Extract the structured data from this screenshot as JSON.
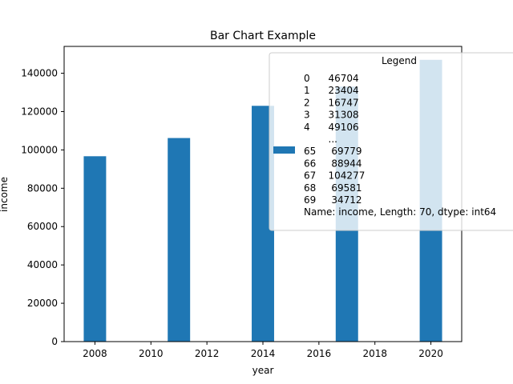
{
  "chart_data": {
    "type": "bar",
    "title": "Bar Chart Example",
    "xlabel": "year",
    "ylabel": "income",
    "x": [
      2008,
      2011,
      2014,
      2017,
      2020
    ],
    "values": [
      96700,
      106200,
      123000,
      133000,
      147000
    ],
    "xlim": [
      2006.9,
      2021.1
    ],
    "ylim": [
      0,
      154000
    ],
    "xticks": [
      2008,
      2010,
      2012,
      2014,
      2016,
      2018,
      2020
    ],
    "yticks": [
      0,
      20000,
      40000,
      60000,
      80000,
      100000,
      120000,
      140000
    ],
    "grid": false,
    "bar_color": "#1f77b4",
    "legend": {
      "title": "Legend",
      "placement": "top-right",
      "lines": [
        "0      46704",
        "1      23404",
        "2      16747",
        "3      31308",
        "4      49106",
        "        ...",
        "65     69779",
        "66     88944",
        "67    104277",
        "68     69581",
        "69     34712",
        "Name: income, Length: 70, dtype: int64"
      ]
    }
  }
}
